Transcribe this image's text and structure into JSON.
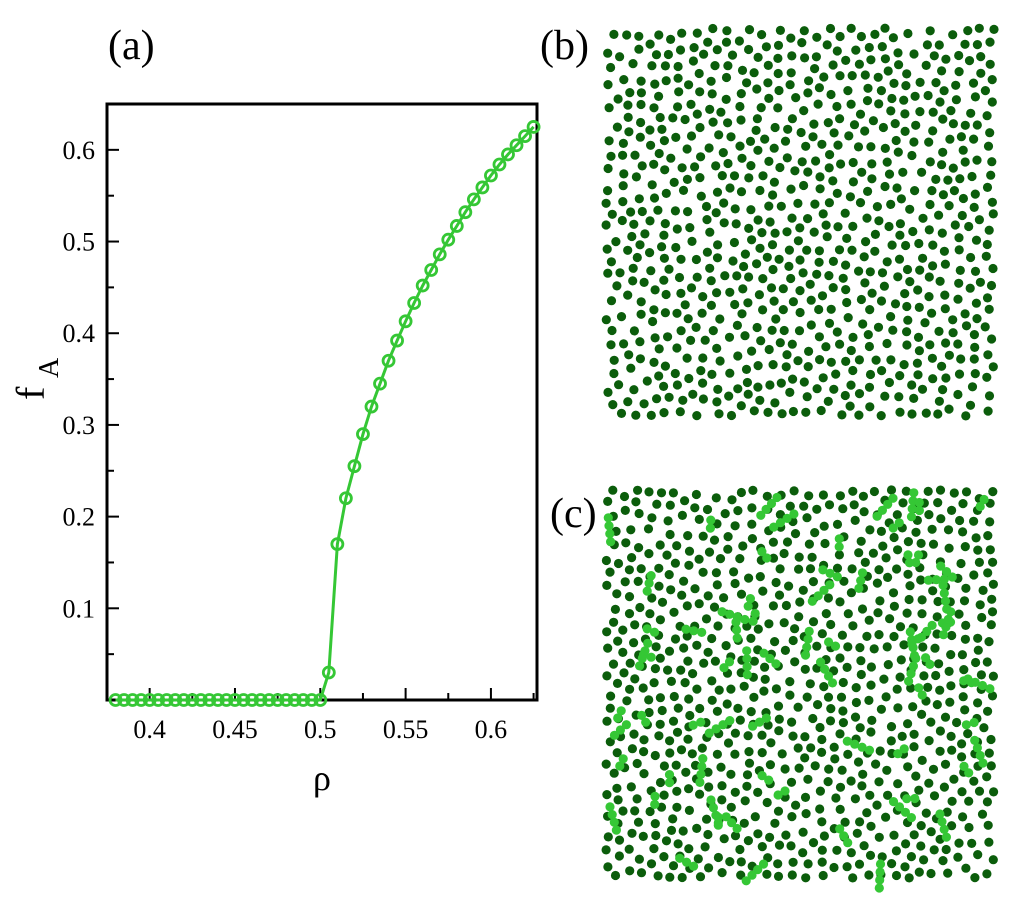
{
  "panels": {
    "a": "(a)",
    "b": "(b)",
    "c": "(c)"
  },
  "colors": {
    "curve": "#35c735",
    "particle_dark": "#0b5d0b",
    "particle_light": "#35c735"
  },
  "chart_data": {
    "type": "line",
    "marker": "open-circle",
    "xlabel": "ρ",
    "ylabel": "f",
    "ylabel_sub": "A",
    "xlim": [
      0.375,
      0.627
    ],
    "ylim": [
      0.0,
      0.65
    ],
    "xticks": [
      0.4,
      0.45,
      0.5,
      0.55,
      0.6
    ],
    "xtick_labels": [
      "0.4",
      "0.45",
      "0.5",
      "0.55",
      "0.6"
    ],
    "yticks": [
      0.1,
      0.2,
      0.3,
      0.4,
      0.5,
      0.6
    ],
    "ytick_labels": [
      "0.1",
      "0.2",
      "0.3",
      "0.4",
      "0.5",
      "0.6"
    ],
    "series": [
      {
        "x": [
          0.38,
          0.385,
          0.39,
          0.395,
          0.4,
          0.405,
          0.41,
          0.415,
          0.42,
          0.425,
          0.43,
          0.435,
          0.44,
          0.445,
          0.45,
          0.455,
          0.46,
          0.465,
          0.47,
          0.475,
          0.48,
          0.485,
          0.49,
          0.495,
          0.5,
          0.505,
          0.51,
          0.515,
          0.52,
          0.525,
          0.53,
          0.535,
          0.54,
          0.545,
          0.55,
          0.555,
          0.56,
          0.565,
          0.57,
          0.575,
          0.58,
          0.585,
          0.59,
          0.595,
          0.6,
          0.605,
          0.61,
          0.615,
          0.62,
          0.625
        ],
        "y": [
          0,
          0,
          0,
          0,
          0,
          0,
          0,
          0,
          0,
          0,
          0,
          0,
          0,
          0,
          0,
          0,
          0,
          0,
          0,
          0,
          0,
          0,
          0,
          0,
          0,
          0.03,
          0.17,
          0.22,
          0.255,
          0.29,
          0.32,
          0.345,
          0.37,
          0.392,
          0.413,
          0.433,
          0.452,
          0.469,
          0.486,
          0.502,
          0.517,
          0.532,
          0.546,
          0.559,
          0.572,
          0.584,
          0.595,
          0.605,
          0.615,
          0.625
        ]
      }
    ]
  },
  "snapshots": {
    "b": {
      "n_particles": 1350,
      "aggregates": 0
    },
    "c": {
      "n_particles": 1200,
      "aggregates": 72
    }
  }
}
